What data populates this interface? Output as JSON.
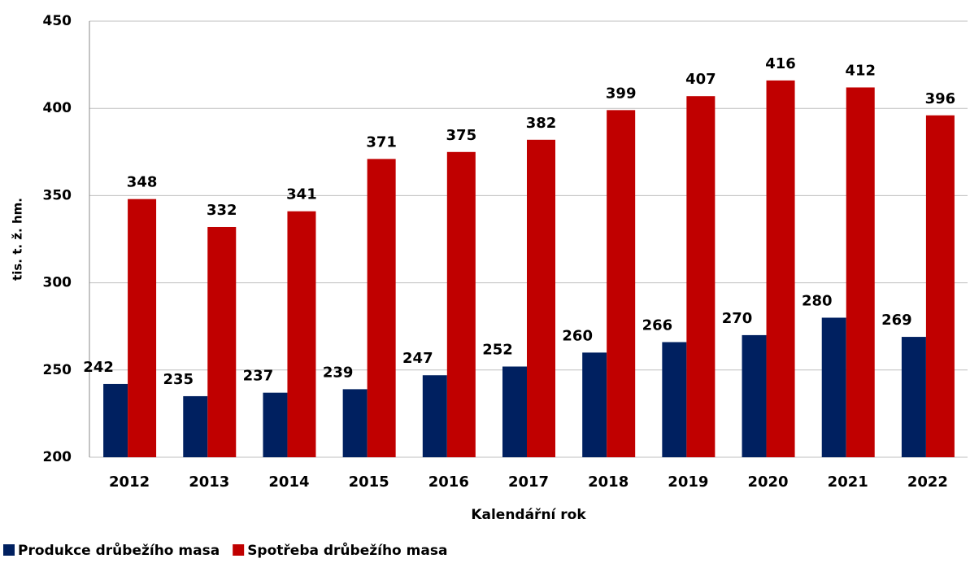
{
  "chart_data": {
    "type": "bar",
    "x_label": "Kalendářní rok",
    "y_label": "tis. t. ž. hm.",
    "categories": [
      "2012",
      "2013",
      "2014",
      "2015",
      "2016",
      "2017",
      "2018",
      "2019",
      "2020",
      "2021",
      "2022"
    ],
    "series": [
      {
        "name": "Produkce drůbežího masa",
        "color": "#002060",
        "values": [
          242,
          235,
          237,
          239,
          247,
          252,
          260,
          266,
          270,
          280,
          269
        ]
      },
      {
        "name": "Spotřeba drůbežího masa",
        "color": "#c00000",
        "values": [
          348,
          332,
          341,
          371,
          375,
          382,
          399,
          407,
          416,
          412,
          396
        ]
      }
    ],
    "ylim": [
      200,
      450
    ],
    "yticks": [
      200,
      250,
      300,
      350,
      400,
      450
    ],
    "grid": true,
    "legend": "bottom-left"
  }
}
